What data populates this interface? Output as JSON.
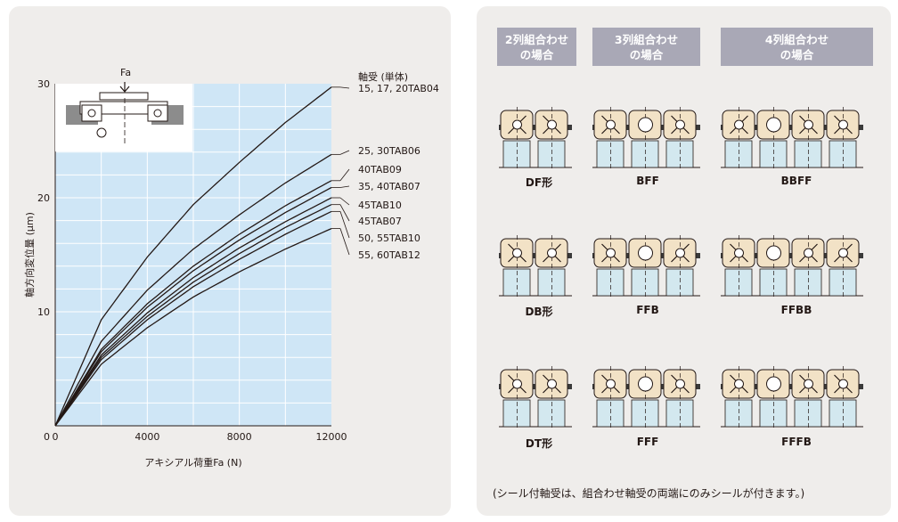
{
  "chart_data": {
    "type": "line",
    "xlabel": "アキシアル荷重Fa (N)",
    "ylabel": "軸方向変位量 (μm)",
    "xlim": [
      0,
      12000
    ],
    "ylim": [
      0,
      30
    ],
    "xticks": [
      0,
      4000,
      8000,
      12000
    ],
    "yticks": [
      10,
      20,
      30
    ],
    "grid": true,
    "legend_header": "軸受 (単体)",
    "inset_label": "Fa",
    "series": [
      {
        "name": "15, 17, 20TAB04",
        "x": [
          0,
          2000,
          4000,
          6000,
          8000,
          10000,
          12000
        ],
        "y": [
          0,
          9.3,
          14.8,
          19.4,
          23.1,
          26.6,
          29.7
        ]
      },
      {
        "name": "25, 30TAB06",
        "x": [
          0,
          2000,
          4000,
          6000,
          8000,
          10000,
          12000
        ],
        "y": [
          0,
          7.4,
          11.9,
          15.5,
          18.5,
          21.3,
          23.8
        ]
      },
      {
        "name": "40TAB09",
        "x": [
          0,
          2000,
          4000,
          6000,
          8000,
          10000,
          12000
        ],
        "y": [
          0,
          6.7,
          10.7,
          14.0,
          16.8,
          19.3,
          21.5
        ]
      },
      {
        "name": "35, 40TAB07",
        "x": [
          0,
          2000,
          4000,
          6000,
          8000,
          10000,
          12000
        ],
        "y": [
          0,
          6.5,
          10.4,
          13.6,
          16.3,
          18.7,
          20.9
        ]
      },
      {
        "name": "45TAB10",
        "x": [
          0,
          2000,
          4000,
          6000,
          8000,
          10000,
          12000
        ],
        "y": [
          0,
          6.2,
          9.9,
          13.0,
          15.6,
          17.9,
          20.0
        ]
      },
      {
        "name": "45TAB07",
        "x": [
          0,
          2000,
          4000,
          6000,
          8000,
          10000,
          12000
        ],
        "y": [
          0,
          6.0,
          9.6,
          12.6,
          15.1,
          17.4,
          19.4
        ]
      },
      {
        "name": "50, 55TAB10",
        "x": [
          0,
          2000,
          4000,
          6000,
          8000,
          10000,
          12000
        ],
        "y": [
          0,
          5.8,
          9.3,
          12.2,
          14.6,
          16.8,
          18.8
        ]
      },
      {
        "name": "55, 60TAB12",
        "x": [
          0,
          2000,
          4000,
          6000,
          8000,
          10000,
          12000
        ],
        "y": [
          0,
          5.4,
          8.6,
          11.3,
          13.5,
          15.5,
          17.3
        ]
      }
    ]
  },
  "colors": {
    "plot_bg": "#cfe6f6",
    "grid": "#ffffff",
    "curve": "#231815",
    "panel_bg": "#efedeb",
    "header_bg": "#a9a8b6",
    "bearing_outer": "#f2e2c6",
    "bearing_seat": "#d3e8ef",
    "note_color": "#231815"
  },
  "headers": [
    "2列組合わせ\nの場合",
    "3列組合わせ\nの場合",
    "4列組合わせ\nの場合"
  ],
  "configs": [
    {
      "label": "DF形",
      "icon": "df-bearing-pair"
    },
    {
      "label": "BFF",
      "icon": "bff-bearing-set"
    },
    {
      "label": "BBFF",
      "icon": "bbff-bearing-set"
    },
    {
      "label": "DB形",
      "icon": "db-bearing-pair"
    },
    {
      "label": "FFB",
      "icon": "ffb-bearing-set"
    },
    {
      "label": "FFBB",
      "icon": "ffbb-bearing-set"
    },
    {
      "label": "DT形",
      "icon": "dt-bearing-pair"
    },
    {
      "label": "FFF",
      "icon": "fff-bearing-set"
    },
    {
      "label": "FFFB",
      "icon": "fffb-bearing-set"
    }
  ],
  "note": "(シール付軸受は、組合わせ軸受の両端にのみシールが付きます。)"
}
